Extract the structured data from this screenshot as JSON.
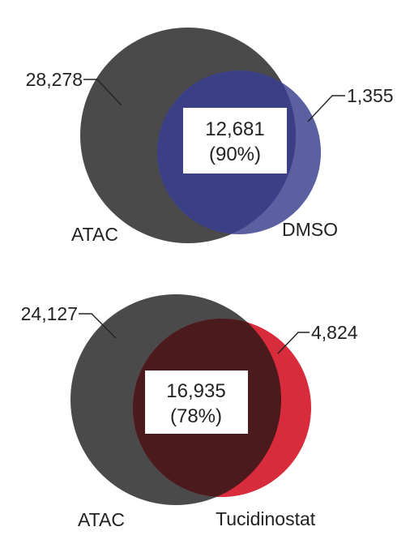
{
  "venns": [
    {
      "left_label": "ATAC",
      "right_label": "DMSO",
      "left_only": "28,278",
      "right_only": "1,355",
      "overlap": "12,681",
      "overlap_pct": "(90%)",
      "colors": {
        "left": "#4a4a4a",
        "right": "#4d5299",
        "overlap": "#3a3f86"
      }
    },
    {
      "left_label": "ATAC",
      "right_label": "Tucidinostat",
      "left_only": "24,127",
      "right_only": "4,824",
      "overlap": "16,935",
      "overlap_pct": "(78%)",
      "colors": {
        "left": "#4a4a4a",
        "right": "#d5192a",
        "overlap": "#4a1a1d"
      }
    }
  ]
}
